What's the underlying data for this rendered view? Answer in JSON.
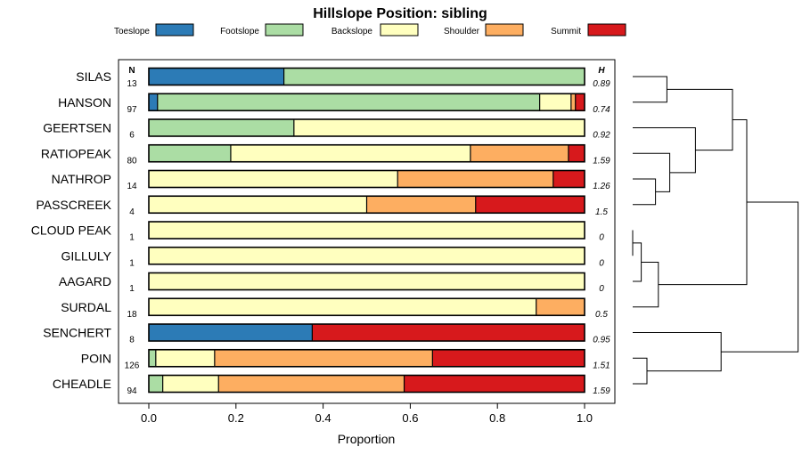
{
  "chart_data": {
    "type": "bar",
    "orientation": "horizontal-stacked",
    "title": "Hillslope Position: sibling",
    "xlabel": "Proportion",
    "ylabel": "",
    "xlim": [
      0,
      1
    ],
    "xticks": [
      "0.0",
      "0.2",
      "0.4",
      "0.6",
      "0.8",
      "1.0"
    ],
    "n_header": "N",
    "h_header": "H",
    "legend_placement": "top",
    "legend": [
      {
        "name": "Toeslope",
        "color": "#2c7bb6"
      },
      {
        "name": "Footslope",
        "color": "#abdda4"
      },
      {
        "name": "Backslope",
        "color": "#ffffbf"
      },
      {
        "name": "Shoulder",
        "color": "#fdae61"
      },
      {
        "name": "Summit",
        "color": "#d7191c"
      }
    ],
    "categories": [
      "SILAS",
      "HANSON",
      "GEERTSEN",
      "RATIOPEAK",
      "NATHROP",
      "PASSCREEK",
      "CLOUD PEAK",
      "GILLULY",
      "AAGARD",
      "SURDAL",
      "SENCHERT",
      "POIN",
      "CHEADLE"
    ],
    "n": [
      "13",
      "97",
      "6",
      "80",
      "14",
      "4",
      "1",
      "1",
      "1",
      "18",
      "8",
      "126",
      "94"
    ],
    "h": [
      "0.89",
      "0.74",
      "0.92",
      "1.59",
      "1.26",
      "1.5",
      "0",
      "0",
      "0",
      "0.5",
      "0.95",
      "1.51",
      "1.59"
    ],
    "series": [
      {
        "name": "Toeslope",
        "values": [
          0.31,
          0.02,
          0,
          0,
          0,
          0,
          0,
          0,
          0,
          0,
          0.375,
          0,
          0
        ]
      },
      {
        "name": "Footslope",
        "values": [
          0.69,
          0.877,
          0.333,
          0.188,
          0,
          0,
          0,
          0,
          0,
          0,
          0,
          0.016,
          0.032
        ]
      },
      {
        "name": "Backslope",
        "values": [
          0,
          0.072,
          0.667,
          0.55,
          0.571,
          0.5,
          1,
          1,
          1,
          0.889,
          0,
          0.135,
          0.128
        ]
      },
      {
        "name": "Shoulder",
        "values": [
          0,
          0.01,
          0,
          0.225,
          0.357,
          0.25,
          0,
          0,
          0,
          0.111,
          0,
          0.5,
          0.426
        ]
      },
      {
        "name": "Summit",
        "values": [
          0,
          0.021,
          0,
          0.037,
          0.072,
          0.25,
          0,
          0,
          0,
          0,
          0.625,
          0.349,
          0.414
        ]
      }
    ],
    "dendrogram": {
      "description": "hierarchical clustering of rows",
      "merges": [
        {
          "a": "SILAS",
          "b": "HANSON",
          "height": 0.06
        },
        {
          "a": "CLOUD PEAK",
          "b": "GILLULY",
          "height": 0.0
        },
        {
          "a": "NATHROP",
          "b": "PASSCREEK",
          "height": 0.04
        },
        {
          "a": "AAGARD",
          "b": "m2",
          "height": 0.015
        },
        {
          "a": "POIN",
          "b": "CHEADLE",
          "height": 0.025
        },
        {
          "a": "m4",
          "b": "SURDAL",
          "height": 0.045
        },
        {
          "a": "RATIOPEAK",
          "b": "m3",
          "height": 0.065
        },
        {
          "a": "GEERTSEN",
          "b": "m7",
          "height": 0.11
        },
        {
          "a": "SENCHERT",
          "b": "m5",
          "height": 0.155
        },
        {
          "a": "m1",
          "b": "m8",
          "height": 0.175
        },
        {
          "a": "m10",
          "b": "m6",
          "height": 0.2
        },
        {
          "a": "m11",
          "b": "m9",
          "height": 0.29
        }
      ]
    }
  }
}
